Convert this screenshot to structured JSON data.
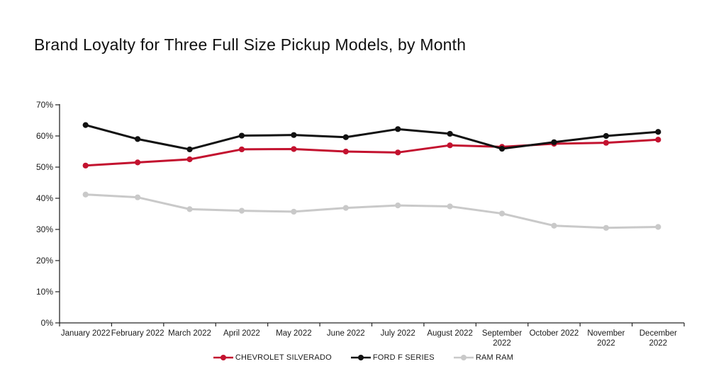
{
  "title": "Brand Loyalty for Three Full Size Pickup Models, by Month",
  "colors": {
    "background": "#ffffff",
    "axis": "#262626",
    "text": "#1a1a1a",
    "chevrolet_red": "#c3122f",
    "ford_black": "#111111",
    "ram_gray": "#c9c9c9"
  },
  "chart_data": {
    "type": "line",
    "title": "Brand Loyalty for Three Full Size Pickup Models, by Month",
    "xlabel": "",
    "ylabel": "",
    "ylim": [
      0,
      70
    ],
    "grid": false,
    "legend_position": "bottom",
    "y_ticks": [
      0,
      10,
      20,
      30,
      40,
      50,
      60,
      70
    ],
    "y_tick_labels": [
      "0%",
      "10%",
      "20%",
      "30%",
      "40%",
      "50%",
      "60%",
      "70%"
    ],
    "categories": [
      "January 2022",
      "February 2022",
      "March 2022",
      "April 2022",
      "May 2022",
      "June 2022",
      "July 2022",
      "August 2022",
      "September 2022",
      "October 2022",
      "November 2022",
      "December 2022"
    ],
    "x_tick_display": [
      [
        "January 2022"
      ],
      [
        "February 2022"
      ],
      [
        "March 2022"
      ],
      [
        "April 2022"
      ],
      [
        "May 2022"
      ],
      [
        "June 2022"
      ],
      [
        "July 2022"
      ],
      [
        "August 2022"
      ],
      [
        "September",
        "2022"
      ],
      [
        "October 2022"
      ],
      [
        "November",
        "2022"
      ],
      [
        "December",
        "2022"
      ]
    ],
    "series": [
      {
        "name": "CHEVROLET SILVERADO",
        "color": "#c3122f",
        "values": [
          50.5,
          51.5,
          52.5,
          55.7,
          55.8,
          55.0,
          54.7,
          57.0,
          56.5,
          57.5,
          57.8,
          58.8
        ]
      },
      {
        "name": "FORD F SERIES",
        "color": "#111111",
        "values": [
          63.5,
          59.0,
          55.7,
          60.1,
          60.3,
          59.6,
          62.2,
          60.7,
          55.9,
          58.0,
          60.0,
          61.3
        ]
      },
      {
        "name": "RAM RAM",
        "color": "#c9c9c9",
        "values": [
          41.2,
          40.3,
          36.5,
          36.0,
          35.7,
          36.9,
          37.7,
          37.4,
          35.1,
          31.2,
          30.5,
          30.8
        ]
      }
    ]
  }
}
